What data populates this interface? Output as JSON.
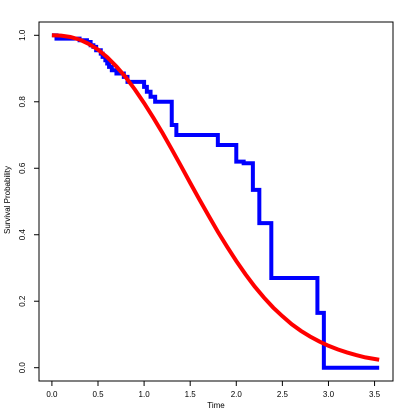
{
  "chart_data": {
    "type": "line",
    "title": "",
    "xlabel": "Time",
    "ylabel": "Survival Probability",
    "xlim": [
      -0.14,
      3.7
    ],
    "ylim": [
      -0.04,
      1.04
    ],
    "x_ticks": [
      0.0,
      0.5,
      1.0,
      1.5,
      2.0,
      2.5,
      3.0,
      3.5
    ],
    "x_tick_labels": [
      "0.0",
      "0.5",
      "1.0",
      "1.5",
      "2.0",
      "2.5",
      "3.0",
      "3.5"
    ],
    "y_ticks": [
      0.0,
      0.2,
      0.4,
      0.6,
      0.8,
      1.0
    ],
    "y_tick_labels": [
      "0.0",
      "0.2",
      "0.4",
      "0.6",
      "0.8",
      "1.0"
    ],
    "grid": false,
    "legend": "none",
    "series": [
      {
        "kind": "step",
        "color": "#0000ff",
        "x": [
          0.0,
          0.05,
          0.3,
          0.38,
          0.42,
          0.45,
          0.48,
          0.53,
          0.55,
          0.58,
          0.6,
          0.62,
          0.65,
          0.7,
          0.78,
          0.82,
          1.0,
          1.03,
          1.07,
          1.12,
          1.3,
          1.35,
          1.8,
          2.0,
          2.08,
          2.18,
          2.25,
          2.38,
          2.85,
          2.88,
          2.95,
          3.55
        ],
        "y": [
          1.0,
          0.99,
          0.985,
          0.98,
          0.97,
          0.965,
          0.955,
          0.945,
          0.935,
          0.925,
          0.915,
          0.905,
          0.895,
          0.885,
          0.875,
          0.86,
          0.845,
          0.83,
          0.815,
          0.8,
          0.73,
          0.7,
          0.67,
          0.62,
          0.615,
          0.535,
          0.435,
          0.27,
          0.27,
          0.165,
          0.0,
          0.0
        ]
      },
      {
        "kind": "curve",
        "color": "#ff0000",
        "x": [
          0.0,
          0.1,
          0.2,
          0.3,
          0.4,
          0.5,
          0.6,
          0.7,
          0.8,
          0.9,
          1.0,
          1.1,
          1.2,
          1.3,
          1.4,
          1.5,
          1.6,
          1.7,
          1.8,
          1.9,
          2.0,
          2.1,
          2.2,
          2.3,
          2.4,
          2.5,
          2.6,
          2.7,
          2.8,
          2.9,
          3.0,
          3.1,
          3.2,
          3.3,
          3.4,
          3.55
        ],
        "y": [
          1.0,
          0.999,
          0.995,
          0.987,
          0.974,
          0.957,
          0.934,
          0.906,
          0.874,
          0.837,
          0.796,
          0.752,
          0.706,
          0.657,
          0.607,
          0.556,
          0.506,
          0.457,
          0.409,
          0.364,
          0.321,
          0.281,
          0.244,
          0.211,
          0.181,
          0.155,
          0.131,
          0.111,
          0.094,
          0.079,
          0.066,
          0.055,
          0.046,
          0.038,
          0.031,
          0.024
        ]
      }
    ]
  }
}
